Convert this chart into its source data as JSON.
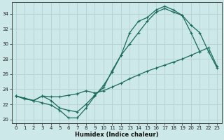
{
  "xlabel": "Humidex (Indice chaleur)",
  "bg_color": "#cce8e8",
  "grid_color": "#b8d4d4",
  "line_color": "#1a6b5a",
  "xlim": [
    -0.5,
    23.5
  ],
  "ylim": [
    19.5,
    35.5
  ],
  "yticks": [
    20,
    22,
    24,
    26,
    28,
    30,
    32,
    34
  ],
  "xticks": [
    0,
    1,
    2,
    3,
    4,
    5,
    6,
    7,
    8,
    9,
    10,
    11,
    12,
    13,
    14,
    15,
    16,
    17,
    18,
    19,
    20,
    21,
    22,
    23
  ],
  "line1_x": [
    0,
    1,
    2,
    3,
    4,
    5,
    6,
    7,
    8,
    9,
    10,
    11,
    12,
    13,
    14,
    15,
    16,
    17,
    18,
    19,
    20,
    21
  ],
  "line1_y": [
    23.1,
    22.7,
    22.5,
    22.2,
    21.9,
    21.2,
    20.2,
    20.2,
    21.5,
    23.1,
    24.5,
    26.3,
    28.5,
    30.0,
    31.5,
    33.0,
    34.2,
    34.7,
    34.2,
    33.8,
    31.5,
    29.0
  ],
  "line2_x": [
    0,
    1,
    2,
    3,
    4,
    5,
    6,
    7,
    8,
    9,
    10,
    11,
    12,
    13,
    14,
    15,
    16,
    17,
    18,
    19,
    20,
    21,
    22,
    23
  ],
  "line2_y": [
    23.1,
    22.8,
    22.5,
    23.1,
    23.0,
    23.0,
    23.2,
    23.4,
    23.8,
    23.5,
    23.8,
    24.3,
    24.8,
    25.4,
    25.9,
    26.4,
    26.8,
    27.2,
    27.6,
    28.0,
    28.5,
    29.0,
    29.5,
    27.0
  ],
  "line3_x": [
    0,
    1,
    2,
    3,
    4,
    5,
    6,
    7,
    8,
    9,
    10,
    11,
    12,
    13,
    14,
    15,
    16,
    17,
    18,
    19,
    20,
    21,
    22,
    23
  ],
  "line3_y": [
    23.1,
    22.8,
    22.5,
    23.1,
    22.5,
    21.5,
    21.2,
    21.0,
    22.0,
    23.2,
    24.2,
    26.5,
    28.5,
    31.5,
    33.0,
    33.5,
    34.5,
    35.0,
    34.5,
    33.8,
    32.5,
    31.5,
    29.0,
    26.8
  ]
}
